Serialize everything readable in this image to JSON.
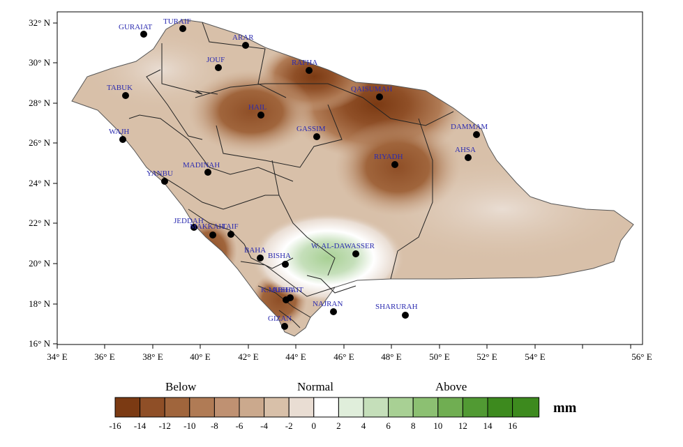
{
  "map": {
    "y_ticks": [
      "32° N",
      "30° N",
      "28° N",
      "26° N",
      "24° N",
      "22° N",
      "20° N",
      "18° N",
      "16° N"
    ],
    "x_ticks": [
      "34° E",
      "36° E",
      "38° E",
      "40° E",
      "42° E",
      "44° E",
      "46° E",
      "48° E",
      "50° E",
      "52° E",
      "54° E",
      "56° E"
    ],
    "cities": [
      {
        "name": "GURAIAT"
      },
      {
        "name": "TURAIF"
      },
      {
        "name": "ARAR"
      },
      {
        "name": "JOUF"
      },
      {
        "name": "RAFHA"
      },
      {
        "name": "QAISUMAH"
      },
      {
        "name": "TABUK"
      },
      {
        "name": "HAIL"
      },
      {
        "name": "GASSIM"
      },
      {
        "name": "DAMMAM"
      },
      {
        "name": "WAJH"
      },
      {
        "name": "AHSA"
      },
      {
        "name": "RIYADH"
      },
      {
        "name": "MADINAH"
      },
      {
        "name": "YANBU"
      },
      {
        "name": "JEDDAH"
      },
      {
        "name": "MAKKAH"
      },
      {
        "name": "TAIF"
      },
      {
        "name": "W. AL-DAWASSER"
      },
      {
        "name": "BAHA"
      },
      {
        "name": "BISHA"
      },
      {
        "name": "K.MUSHAIT"
      },
      {
        "name": "ABHA"
      },
      {
        "name": "NAJRAN"
      },
      {
        "name": "SHARURAH"
      },
      {
        "name": "GIZAN"
      }
    ]
  },
  "legend": {
    "below_label": "Below",
    "normal_label": "Normal",
    "above_label": "Above",
    "unit": "mm",
    "ticks": [
      "-16",
      "-14",
      "-12",
      "-10",
      "-8",
      "-6",
      "-4",
      "-2",
      "0",
      "2",
      "4",
      "6",
      "8",
      "10",
      "12",
      "14",
      "16"
    ],
    "colors": [
      "#7b3a13",
      "#8f4f27",
      "#a0653c",
      "#b07b55",
      "#bf9172",
      "#cba98d",
      "#d8c0a9",
      "#e9ddd3",
      "#ffffff",
      "#e0eedb",
      "#c5dfba",
      "#a8d094",
      "#8cc072",
      "#70ae52",
      "#519a33",
      "#3d8a1e"
    ]
  }
}
